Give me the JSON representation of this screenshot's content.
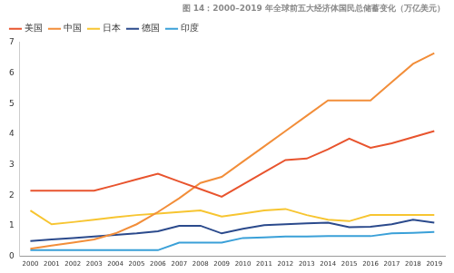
{
  "chart_data": {
    "type": "line",
    "title": "图 14：2000–2019 年全球前五大经济体国民总储蓄变化（万亿美元）",
    "categories": [
      "2000",
      "2001",
      "2002",
      "2003",
      "2004",
      "2005",
      "2006",
      "2007",
      "2008",
      "2009",
      "2010",
      "2011",
      "2012",
      "2013",
      "2014",
      "2015",
      "2016",
      "2017",
      "2018",
      "2019"
    ],
    "series": [
      {
        "name": "美国",
        "color": "#e8542e",
        "values": [
          2.15,
          2.15,
          2.15,
          2.15,
          2.33,
          2.52,
          2.7,
          2.45,
          2.2,
          1.95,
          2.35,
          2.75,
          3.15,
          3.2,
          3.5,
          3.85,
          3.55,
          3.7,
          3.9,
          4.1
        ]
      },
      {
        "name": "中国",
        "color": "#f28e3a",
        "values": [
          0.25,
          0.35,
          0.45,
          0.55,
          0.75,
          1.05,
          1.45,
          1.9,
          2.4,
          2.6,
          3.1,
          3.6,
          4.1,
          4.6,
          5.1,
          5.1,
          5.1,
          5.7,
          6.3,
          6.65
        ]
      },
      {
        "name": "日本",
        "color": "#f7c531",
        "values": [
          1.5,
          1.05,
          1.12,
          1.2,
          1.28,
          1.35,
          1.4,
          1.45,
          1.5,
          1.3,
          1.4,
          1.5,
          1.55,
          1.35,
          1.2,
          1.15,
          1.35,
          1.35,
          1.35,
          1.35
        ]
      },
      {
        "name": "德国",
        "color": "#2b4a8c",
        "values": [
          0.5,
          0.55,
          0.6,
          0.65,
          0.7,
          0.75,
          0.82,
          1.0,
          1.0,
          0.75,
          0.9,
          1.02,
          1.05,
          1.08,
          1.1,
          0.95,
          0.97,
          1.05,
          1.2,
          1.1
        ]
      },
      {
        "name": "印度",
        "color": "#3aa0d8",
        "values": [
          0.2,
          0.2,
          0.2,
          0.2,
          0.2,
          0.2,
          0.2,
          0.45,
          0.45,
          0.45,
          0.6,
          0.62,
          0.65,
          0.65,
          0.66,
          0.66,
          0.66,
          0.75,
          0.77,
          0.8
        ]
      }
    ],
    "ylim": [
      0,
      7
    ],
    "yticks": [
      0,
      1,
      2,
      3,
      4,
      5,
      6,
      7
    ],
    "grid": false,
    "legend": "top-left"
  }
}
